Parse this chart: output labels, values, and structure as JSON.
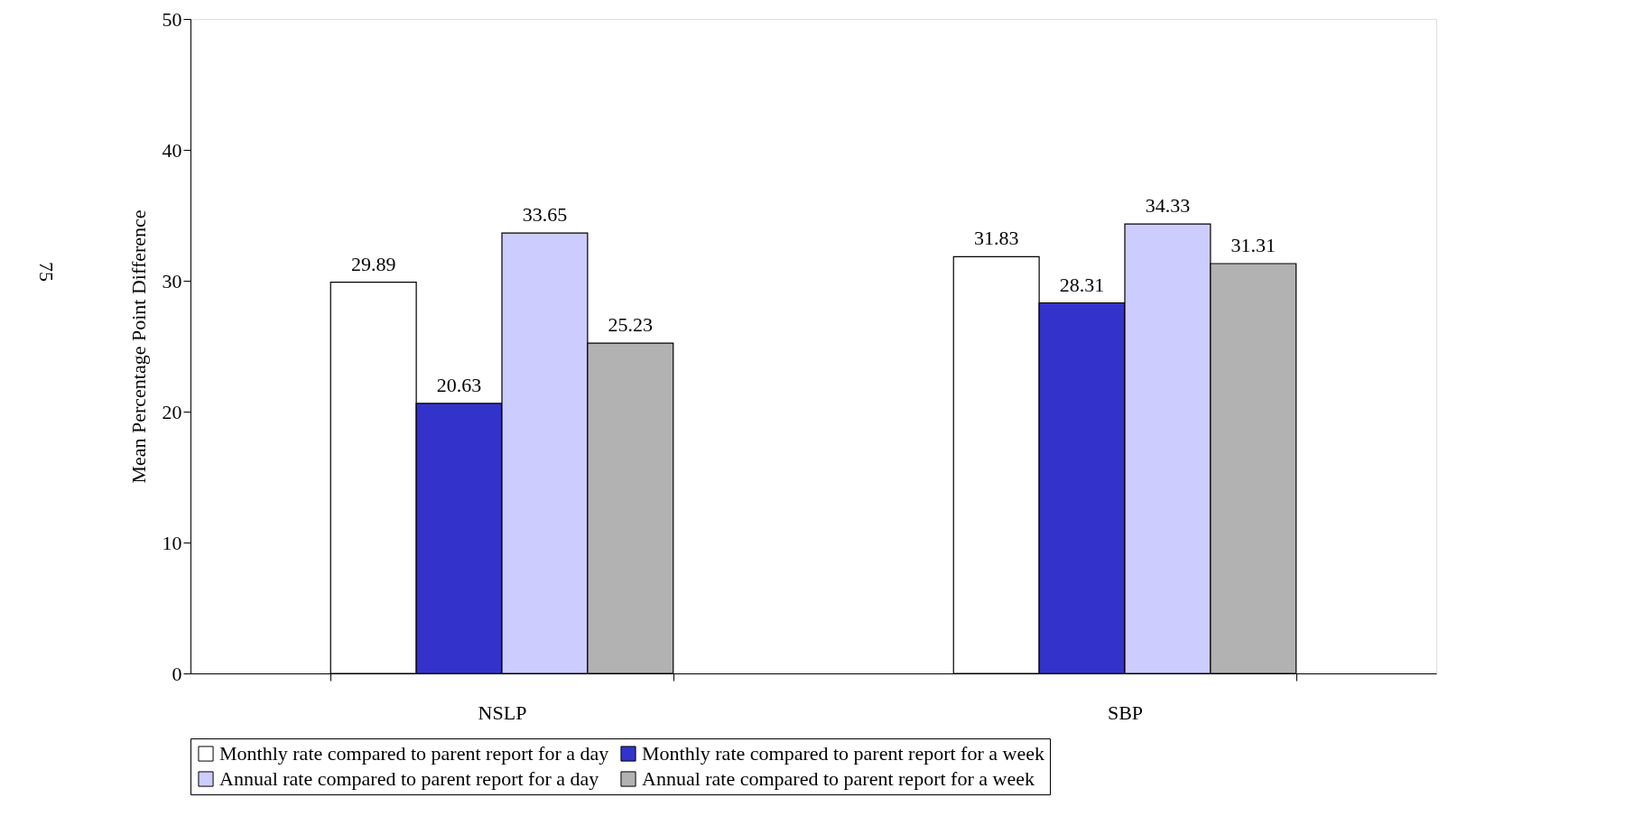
{
  "chart_data": {
    "type": "bar",
    "ylabel": "Mean Percentage Point Difference",
    "categories": [
      "NSLP",
      "SBP"
    ],
    "series": [
      {
        "name": "Monthly rate compared to parent report for a day",
        "color": "#ffffff",
        "values": [
          29.89,
          31.83
        ]
      },
      {
        "name": "Monthly rate compared to parent report for a week",
        "color": "#3333cc",
        "values": [
          20.63,
          28.31
        ]
      },
      {
        "name": "Annual rate compared to parent report for a day",
        "color": "#ccccff",
        "values": [
          33.65,
          34.33
        ]
      },
      {
        "name": "Annual rate compared to parent report for a week",
        "color": "#b2b2b2",
        "values": [
          25.23,
          31.31
        ]
      }
    ],
    "ylim": [
      0,
      50
    ],
    "yticks": [
      0,
      10,
      20,
      30,
      40,
      50
    ],
    "data_labels": true,
    "grid": false,
    "legend": "bottom",
    "annotations": [
      "75"
    ]
  }
}
